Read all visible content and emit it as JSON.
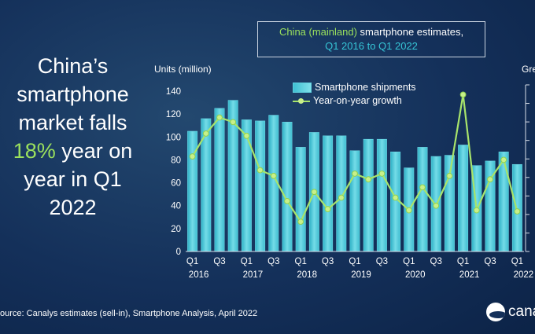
{
  "headline": {
    "line1": "China’s",
    "line2": "smartphone",
    "line3": "market falls",
    "highlight": "18%",
    "line4_rest": " year on",
    "line5": "year in Q1",
    "line6": "2022"
  },
  "title": {
    "part1": "China (mainland)",
    "part2": " smartphone estimates,",
    "part3": "Q1 2016 to Q1 2022"
  },
  "footer": {
    "source": "ource: Canalys estimates (sell-in), Smartphone Analysis, April 2022",
    "brand": "canal"
  },
  "colors": {
    "bar": "#4cc6d6",
    "line": "#a8e46b",
    "highlight": "#9be15d"
  },
  "chart_data": {
    "type": "bar",
    "ylabel": "Units (million)",
    "y2label": "Gre",
    "ylim": [
      0,
      140
    ],
    "yticks": [
      0,
      20,
      40,
      60,
      80,
      100,
      120,
      140
    ],
    "categories": [
      "Q1 2016",
      "Q2 2016",
      "Q3 2016",
      "Q4 2016",
      "Q1 2017",
      "Q2 2017",
      "Q3 2017",
      "Q4 2017",
      "Q1 2018",
      "Q2 2018",
      "Q3 2018",
      "Q4 2018",
      "Q1 2019",
      "Q2 2019",
      "Q3 2019",
      "Q4 2019",
      "Q1 2020",
      "Q2 2020",
      "Q3 2020",
      "Q4 2020",
      "Q1 2021",
      "Q2 2021",
      "Q3 2021",
      "Q4 2021",
      "Q1 2022"
    ],
    "xtick_labels": [
      "Q1",
      "",
      "Q3",
      "",
      "Q1",
      "",
      "Q3",
      "",
      "Q1",
      "",
      "Q3",
      "",
      "Q1",
      "",
      "Q3",
      "",
      "Q1",
      "",
      "Q3",
      "",
      "Q1",
      "",
      "Q3",
      "",
      "Q1"
    ],
    "xtick_years": [
      "2016",
      "",
      "",
      "",
      "2017",
      "",
      "",
      "",
      "2018",
      "",
      "",
      "",
      "2019",
      "",
      "",
      "",
      "2020",
      "",
      "",
      "",
      "2021",
      "",
      "",
      "",
      "2022"
    ],
    "legend": [
      "Smartphone shipments",
      "Year-on-year growth"
    ],
    "legend_position": "top-center",
    "series": [
      {
        "name": "Smartphone shipments",
        "type": "bar",
        "values": [
          105,
          116,
          125,
          132,
          115,
          114,
          119,
          113,
          91,
          104,
          101,
          101,
          88,
          98,
          98,
          87,
          73,
          91,
          83,
          84,
          93,
          75,
          79,
          87,
          76
        ]
      },
      {
        "name": "Year-on-year growth",
        "type": "line",
        "axis": "secondary",
        "y2lim": [
          0,
          140
        ],
        "values": [
          83,
          103,
          117,
          113,
          101,
          71,
          66,
          44,
          26,
          52,
          37,
          47,
          68,
          63,
          68,
          47,
          36,
          56,
          40,
          66,
          137,
          36,
          63,
          80,
          35
        ]
      }
    ]
  }
}
